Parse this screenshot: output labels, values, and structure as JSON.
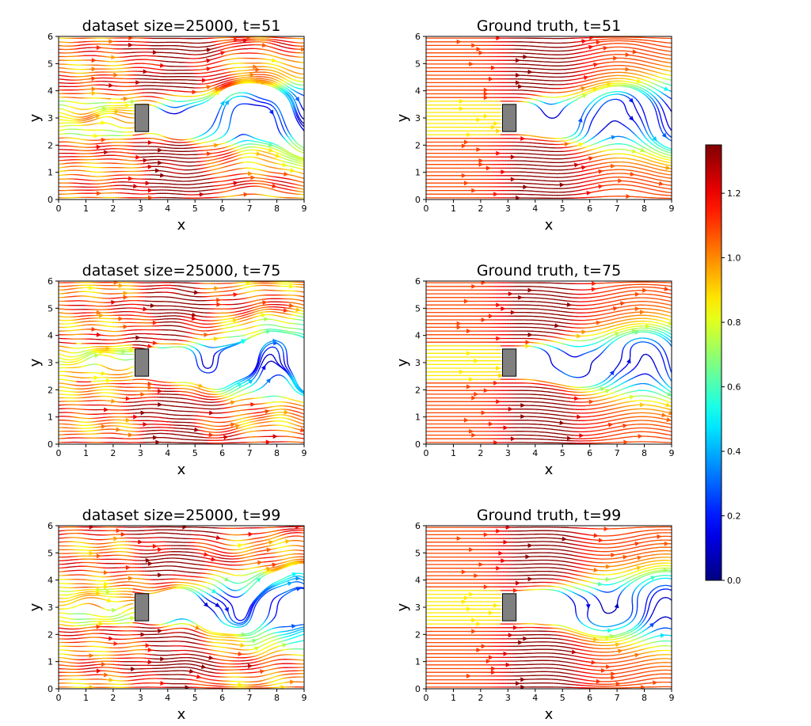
{
  "chart_data": [
    {
      "type": "streamplot",
      "title": "dataset size=25000, t=51",
      "xlabel": "x",
      "ylabel": "y",
      "xlim": [
        0,
        9
      ],
      "ylim": [
        0,
        6
      ],
      "xticks": [
        0,
        1,
        2,
        3,
        4,
        5,
        6,
        7,
        8,
        9
      ],
      "yticks": [
        0,
        1,
        2,
        3,
        4,
        5,
        6
      ],
      "obstacle": {
        "x": [
          2.8,
          3.3
        ],
        "y": [
          2.5,
          3.5
        ],
        "color": "#808080"
      },
      "flow": {
        "kind": "prediction",
        "wake_amplitude": 0.6,
        "phase": 0.4,
        "noise": 0.55,
        "wake_speed": 0.25,
        "side_speed": 1.2
      }
    },
    {
      "type": "streamplot",
      "title": "Ground truth, t=51",
      "xlabel": "x",
      "ylabel": "y",
      "xlim": [
        0,
        9
      ],
      "ylim": [
        0,
        6
      ],
      "xticks": [
        0,
        1,
        2,
        3,
        4,
        5,
        6,
        7,
        8,
        9
      ],
      "yticks": [
        0,
        1,
        2,
        3,
        4,
        5,
        6
      ],
      "obstacle": {
        "x": [
          2.8,
          3.3
        ],
        "y": [
          2.5,
          3.5
        ],
        "color": "#808080"
      },
      "flow": {
        "kind": "ground_truth",
        "wake_amplitude": 0.55,
        "phase": 0.4,
        "noise": 0.0,
        "wake_speed": 0.15,
        "side_speed": 1.25
      }
    },
    {
      "type": "streamplot",
      "title": "dataset size=25000, t=75",
      "xlabel": "x",
      "ylabel": "y",
      "xlim": [
        0,
        9
      ],
      "ylim": [
        0,
        6
      ],
      "xticks": [
        0,
        1,
        2,
        3,
        4,
        5,
        6,
        7,
        8,
        9
      ],
      "yticks": [
        0,
        1,
        2,
        3,
        4,
        5,
        6
      ],
      "obstacle": {
        "x": [
          2.8,
          3.3
        ],
        "y": [
          2.5,
          3.5
        ],
        "color": "#808080"
      },
      "flow": {
        "kind": "prediction",
        "wake_amplitude": 0.5,
        "phase": 1.6,
        "noise": 0.6,
        "wake_speed": 0.2,
        "side_speed": 1.2
      }
    },
    {
      "type": "streamplot",
      "title": "Ground truth, t=75",
      "xlabel": "x",
      "ylabel": "y",
      "xlim": [
        0,
        9
      ],
      "ylim": [
        0,
        6
      ],
      "xticks": [
        0,
        1,
        2,
        3,
        4,
        5,
        6,
        7,
        8,
        9
      ],
      "yticks": [
        0,
        1,
        2,
        3,
        4,
        5,
        6
      ],
      "obstacle": {
        "x": [
          2.8,
          3.3
        ],
        "y": [
          2.5,
          3.5
        ],
        "color": "#808080"
      },
      "flow": {
        "kind": "ground_truth",
        "wake_amplitude": 0.5,
        "phase": 1.6,
        "noise": 0.0,
        "wake_speed": 0.18,
        "side_speed": 1.25
      }
    },
    {
      "type": "streamplot",
      "title": "dataset size=25000, t=99",
      "xlabel": "x",
      "ylabel": "y",
      "xlim": [
        0,
        9
      ],
      "ylim": [
        0,
        6
      ],
      "xticks": [
        0,
        1,
        2,
        3,
        4,
        5,
        6,
        7,
        8,
        9
      ],
      "yticks": [
        0,
        1,
        2,
        3,
        4,
        5,
        6
      ],
      "obstacle": {
        "x": [
          2.8,
          3.3
        ],
        "y": [
          2.5,
          3.5
        ],
        "color": "#808080"
      },
      "flow": {
        "kind": "prediction",
        "wake_amplitude": 0.55,
        "phase": 2.8,
        "noise": 0.6,
        "wake_speed": 0.28,
        "side_speed": 1.2
      }
    },
    {
      "type": "streamplot",
      "title": "Ground truth, t=99",
      "xlabel": "x",
      "ylabel": "y",
      "xlim": [
        0,
        9
      ],
      "ylim": [
        0,
        6
      ],
      "xticks": [
        0,
        1,
        2,
        3,
        4,
        5,
        6,
        7,
        8,
        9
      ],
      "yticks": [
        0,
        1,
        2,
        3,
        4,
        5,
        6
      ],
      "obstacle": {
        "x": [
          2.8,
          3.3
        ],
        "y": [
          2.5,
          3.5
        ],
        "color": "#808080"
      },
      "flow": {
        "kind": "ground_truth",
        "wake_amplitude": 0.5,
        "phase": 2.8,
        "noise": 0.0,
        "wake_speed": 0.16,
        "side_speed": 1.25
      }
    }
  ],
  "colorbar": {
    "colormap": "jet",
    "range": [
      0.0,
      1.35
    ],
    "ticks": [
      0.0,
      0.2,
      0.4,
      0.6,
      0.8,
      1.0,
      1.2
    ]
  }
}
